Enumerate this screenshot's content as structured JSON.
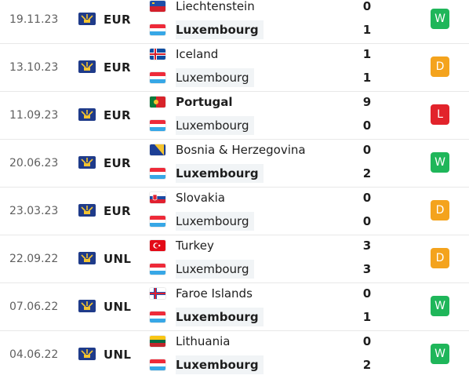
{
  "colors": {
    "win": "#1fb65a",
    "draw": "#f4a31d",
    "loss": "#e2232b",
    "text": "#1e1e1e",
    "date": "#5f5f5f"
  },
  "matches": [
    {
      "date": "19.11.23",
      "competition": "EUR",
      "comp_icon": "euro-trophy-icon",
      "home": {
        "name": "Liechtenstein",
        "flag": "liechtenstein-flag-icon",
        "score": "0",
        "bold": false
      },
      "away": {
        "name": "Luxembourg",
        "flag": "luxembourg-flag-icon",
        "score": "1",
        "bold": true
      },
      "result": "W"
    },
    {
      "date": "13.10.23",
      "competition": "EUR",
      "comp_icon": "euro-trophy-icon",
      "home": {
        "name": "Iceland",
        "flag": "iceland-flag-icon",
        "score": "1",
        "bold": false
      },
      "away": {
        "name": "Luxembourg",
        "flag": "luxembourg-flag-icon",
        "score": "1",
        "bold": false
      },
      "result": "D"
    },
    {
      "date": "11.09.23",
      "competition": "EUR",
      "comp_icon": "euro-trophy-icon",
      "home": {
        "name": "Portugal",
        "flag": "portugal-flag-icon",
        "score": "9",
        "bold": true
      },
      "away": {
        "name": "Luxembourg",
        "flag": "luxembourg-flag-icon",
        "score": "0",
        "bold": false
      },
      "result": "L"
    },
    {
      "date": "20.06.23",
      "competition": "EUR",
      "comp_icon": "euro-trophy-icon",
      "home": {
        "name": "Bosnia & Herzegovina",
        "flag": "bosnia-flag-icon",
        "score": "0",
        "bold": false
      },
      "away": {
        "name": "Luxembourg",
        "flag": "luxembourg-flag-icon",
        "score": "2",
        "bold": true
      },
      "result": "W"
    },
    {
      "date": "23.03.23",
      "competition": "EUR",
      "comp_icon": "euro-trophy-icon",
      "home": {
        "name": "Slovakia",
        "flag": "slovakia-flag-icon",
        "score": "0",
        "bold": false
      },
      "away": {
        "name": "Luxembourg",
        "flag": "luxembourg-flag-icon",
        "score": "0",
        "bold": false
      },
      "result": "D"
    },
    {
      "date": "22.09.22",
      "competition": "UNL",
      "comp_icon": "euro-trophy-icon",
      "home": {
        "name": "Turkey",
        "flag": "turkey-flag-icon",
        "score": "3",
        "bold": false
      },
      "away": {
        "name": "Luxembourg",
        "flag": "luxembourg-flag-icon",
        "score": "3",
        "bold": false
      },
      "result": "D"
    },
    {
      "date": "07.06.22",
      "competition": "UNL",
      "comp_icon": "euro-trophy-icon",
      "home": {
        "name": "Faroe Islands",
        "flag": "faroe-flag-icon",
        "score": "0",
        "bold": false
      },
      "away": {
        "name": "Luxembourg",
        "flag": "luxembourg-flag-icon",
        "score": "1",
        "bold": true
      },
      "result": "W"
    },
    {
      "date": "04.06.22",
      "competition": "UNL",
      "comp_icon": "euro-trophy-icon",
      "home": {
        "name": "Lithuania",
        "flag": "lithuania-flag-icon",
        "score": "0",
        "bold": false
      },
      "away": {
        "name": "Luxembourg",
        "flag": "luxembourg-flag-icon",
        "score": "2",
        "bold": true
      },
      "result": "W"
    }
  ]
}
